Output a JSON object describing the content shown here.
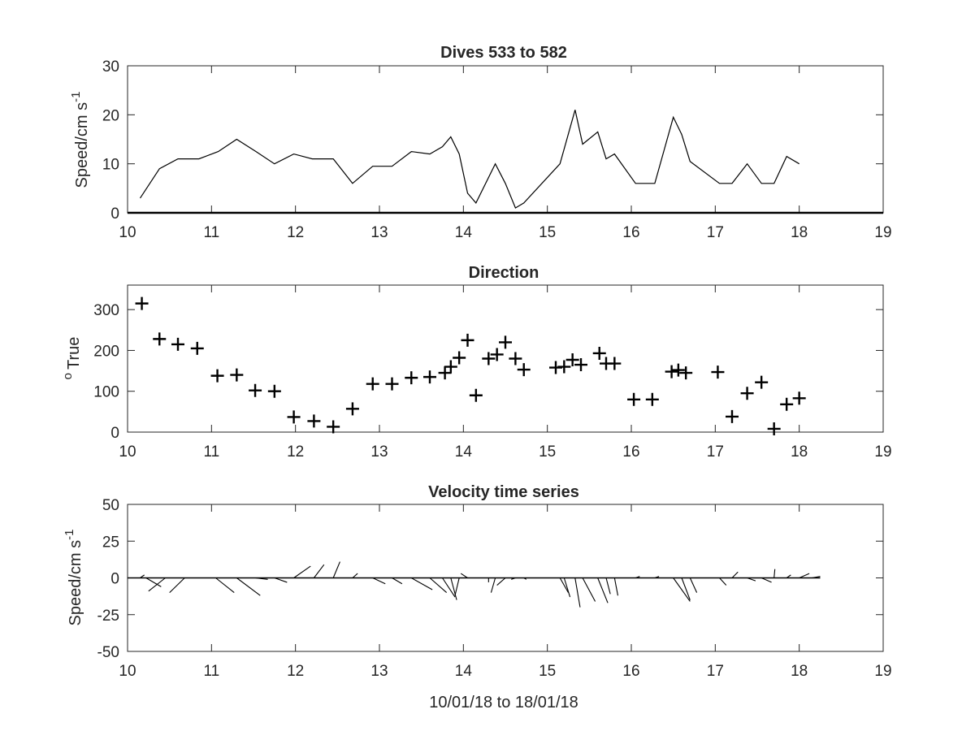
{
  "chart_data": [
    {
      "type": "line",
      "title": "Dives 533 to 582",
      "ylabel": "Speed/cm s",
      "ylabel_superscript": "-1",
      "xlim": [
        10,
        19
      ],
      "ylim": [
        0,
        30
      ],
      "xticks": [
        "10",
        "11",
        "12",
        "13",
        "14",
        "15",
        "16",
        "17",
        "18",
        "19"
      ],
      "yticks": [
        "0",
        "10",
        "20",
        "30"
      ],
      "grid": false,
      "series": [
        {
          "x": [
            10.15,
            10.38,
            10.6,
            10.85,
            11.08,
            11.3,
            11.53,
            11.75,
            11.98,
            12.2,
            12.45,
            12.68,
            12.92,
            13.15,
            13.38,
            13.6,
            13.75,
            13.85,
            13.95,
            14.05,
            14.15,
            14.38,
            14.5,
            14.62,
            14.72,
            15.15,
            15.2,
            15.33,
            15.42,
            15.6,
            15.7,
            15.8,
            16.05,
            16.28,
            16.5,
            16.6,
            16.7,
            17.05,
            17.2,
            17.38,
            17.55,
            17.7,
            17.85,
            18.0
          ],
          "y": [
            3,
            9,
            11,
            11,
            12.5,
            15,
            12.5,
            10,
            12,
            11,
            11,
            6,
            9.5,
            9.5,
            12.5,
            12,
            13.5,
            15.5,
            12,
            4,
            2,
            10,
            6,
            1,
            2,
            10,
            13,
            21,
            14,
            16.5,
            11,
            12,
            6,
            6,
            19.5,
            16,
            10.5,
            6,
            6,
            10,
            6,
            6,
            11.5,
            10
          ]
        }
      ]
    },
    {
      "type": "scatter",
      "title": "Direction",
      "ylabel": "True",
      "ylabel_superscript": "o",
      "xlim": [
        10,
        19
      ],
      "ylim": [
        0,
        360
      ],
      "xticks": [
        "10",
        "11",
        "12",
        "13",
        "14",
        "15",
        "16",
        "17",
        "18",
        "19"
      ],
      "yticks": [
        "0",
        "100",
        "200",
        "300"
      ],
      "grid": false,
      "marker": "+",
      "series": [
        {
          "x": [
            10.17,
            10.38,
            10.6,
            10.83,
            11.07,
            11.3,
            11.52,
            11.75,
            11.98,
            12.22,
            12.45,
            12.68,
            12.92,
            13.15,
            13.38,
            13.6,
            13.78,
            13.85,
            13.95,
            14.05,
            14.15,
            14.3,
            14.4,
            14.5,
            14.62,
            14.72,
            15.1,
            15.2,
            15.3,
            15.4,
            15.62,
            15.7,
            15.8,
            16.03,
            16.25,
            16.48,
            16.56,
            16.65,
            17.03,
            17.2,
            17.38,
            17.55,
            17.7,
            17.85,
            18.0
          ],
          "y": [
            315,
            228,
            215,
            205,
            138,
            140,
            102,
            100,
            37,
            27,
            13,
            57,
            118,
            118,
            133,
            135,
            145,
            160,
            182,
            225,
            90,
            180,
            190,
            220,
            180,
            153,
            158,
            160,
            177,
            165,
            193,
            168,
            168,
            80,
            80,
            148,
            152,
            145,
            147,
            38,
            95,
            122,
            8,
            68,
            83
          ]
        }
      ]
    },
    {
      "type": "quiver",
      "title": "Velocity time series",
      "ylabel": "Speed/cm s",
      "ylabel_superscript": "-1",
      "xlabel": "10/01/18 to 18/01/18",
      "xlim": [
        10,
        19
      ],
      "ylim": [
        -50,
        50
      ],
      "xticks": [
        "10",
        "11",
        "12",
        "13",
        "14",
        "15",
        "16",
        "17",
        "18",
        "19"
      ],
      "yticks": [
        "-50",
        "-25",
        "0",
        "25",
        "50"
      ],
      "grid": false,
      "baseline_y": 0,
      "x_end": 18.25,
      "sticks": [
        {
          "x": 10.15,
          "dx": 0.05,
          "dy": 2
        },
        {
          "x": 10.22,
          "dx": 0.18,
          "dy": -6
        },
        {
          "x": 10.45,
          "dx": -0.2,
          "dy": -9
        },
        {
          "x": 10.68,
          "dx": -0.18,
          "dy": -10
        },
        {
          "x": 11.05,
          "dx": 0.22,
          "dy": -10
        },
        {
          "x": 11.3,
          "dx": 0.28,
          "dy": -12
        },
        {
          "x": 11.52,
          "dx": 0.15,
          "dy": -1
        },
        {
          "x": 11.75,
          "dx": 0.15,
          "dy": -3
        },
        {
          "x": 11.98,
          "dx": 0.2,
          "dy": 8
        },
        {
          "x": 12.22,
          "dx": 0.12,
          "dy": 9
        },
        {
          "x": 12.45,
          "dx": 0.08,
          "dy": 11
        },
        {
          "x": 12.68,
          "dx": 0.06,
          "dy": 3
        },
        {
          "x": 12.92,
          "dx": 0.15,
          "dy": -4
        },
        {
          "x": 13.15,
          "dx": 0.12,
          "dy": -4
        },
        {
          "x": 13.38,
          "dx": 0.25,
          "dy": -8
        },
        {
          "x": 13.6,
          "dx": 0.2,
          "dy": -10
        },
        {
          "x": 13.75,
          "dx": 0.15,
          "dy": -13
        },
        {
          "x": 13.85,
          "dx": 0.07,
          "dy": -15
        },
        {
          "x": 13.95,
          "dx": -0.05,
          "dy": -12
        },
        {
          "x": 14.05,
          "dx": -0.08,
          "dy": 3
        },
        {
          "x": 14.3,
          "dx": 0.0,
          "dy": -3
        },
        {
          "x": 14.38,
          "dx": -0.05,
          "dy": -10
        },
        {
          "x": 14.5,
          "dx": -0.1,
          "dy": -5
        },
        {
          "x": 14.62,
          "dx": -0.05,
          "dy": -1
        },
        {
          "x": 14.72,
          "dx": 0.03,
          "dy": -1
        },
        {
          "x": 15.15,
          "dx": 0.1,
          "dy": -10
        },
        {
          "x": 15.2,
          "dx": 0.07,
          "dy": -13
        },
        {
          "x": 15.33,
          "dx": 0.06,
          "dy": -20
        },
        {
          "x": 15.42,
          "dx": 0.15,
          "dy": -16
        },
        {
          "x": 15.6,
          "dx": 0.12,
          "dy": -17
        },
        {
          "x": 15.7,
          "dx": 0.05,
          "dy": -11
        },
        {
          "x": 15.8,
          "dx": 0.04,
          "dy": -12
        },
        {
          "x": 16.05,
          "dx": 0.05,
          "dy": 1
        },
        {
          "x": 16.28,
          "dx": 0.05,
          "dy": 1
        },
        {
          "x": 16.5,
          "dx": 0.2,
          "dy": -16
        },
        {
          "x": 16.6,
          "dx": 0.1,
          "dy": -15
        },
        {
          "x": 16.7,
          "dx": 0.08,
          "dy": -10
        },
        {
          "x": 17.05,
          "dx": 0.08,
          "dy": -5
        },
        {
          "x": 17.2,
          "dx": 0.07,
          "dy": 4
        },
        {
          "x": 17.38,
          "dx": 0.1,
          "dy": -2
        },
        {
          "x": 17.55,
          "dx": 0.12,
          "dy": -3
        },
        {
          "x": 17.7,
          "dx": 0.01,
          "dy": 6
        },
        {
          "x": 17.85,
          "dx": 0.05,
          "dy": 2
        },
        {
          "x": 18.0,
          "dx": 0.12,
          "dy": 3
        },
        {
          "x": 18.15,
          "dx": 0.1,
          "dy": 1
        }
      ]
    }
  ]
}
